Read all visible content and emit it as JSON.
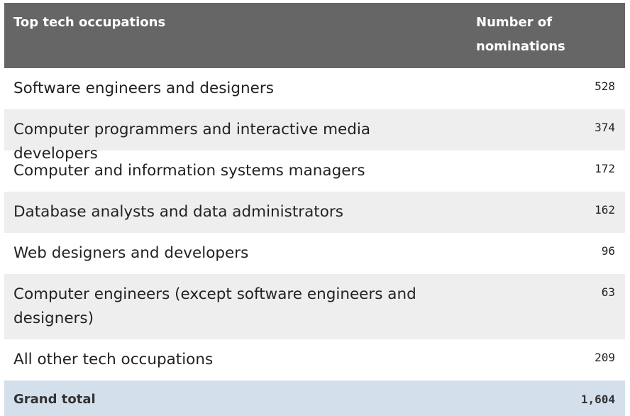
{
  "table": {
    "header": {
      "col1": "Top tech occupations",
      "col2_line1": "Number of",
      "col2_line2": "nominations"
    },
    "rows": [
      {
        "occupation": "Software engineers and designers",
        "nominations": "528"
      },
      {
        "occupation": "Computer programmers and interactive media developers",
        "nominations": "374"
      },
      {
        "occupation": "Computer and information systems managers",
        "nominations": "172"
      },
      {
        "occupation": "Database analysts and data administrators",
        "nominations": "162"
      },
      {
        "occupation": "Web designers and developers",
        "nominations": "96"
      },
      {
        "occupation_line1": "Computer engineers (except software engineers and",
        "occupation_line2": "designers)",
        "nominations": "63"
      },
      {
        "occupation": "All other tech occupations",
        "nominations": "209"
      }
    ],
    "total": {
      "label": "Grand total",
      "value": "1,604"
    }
  }
}
